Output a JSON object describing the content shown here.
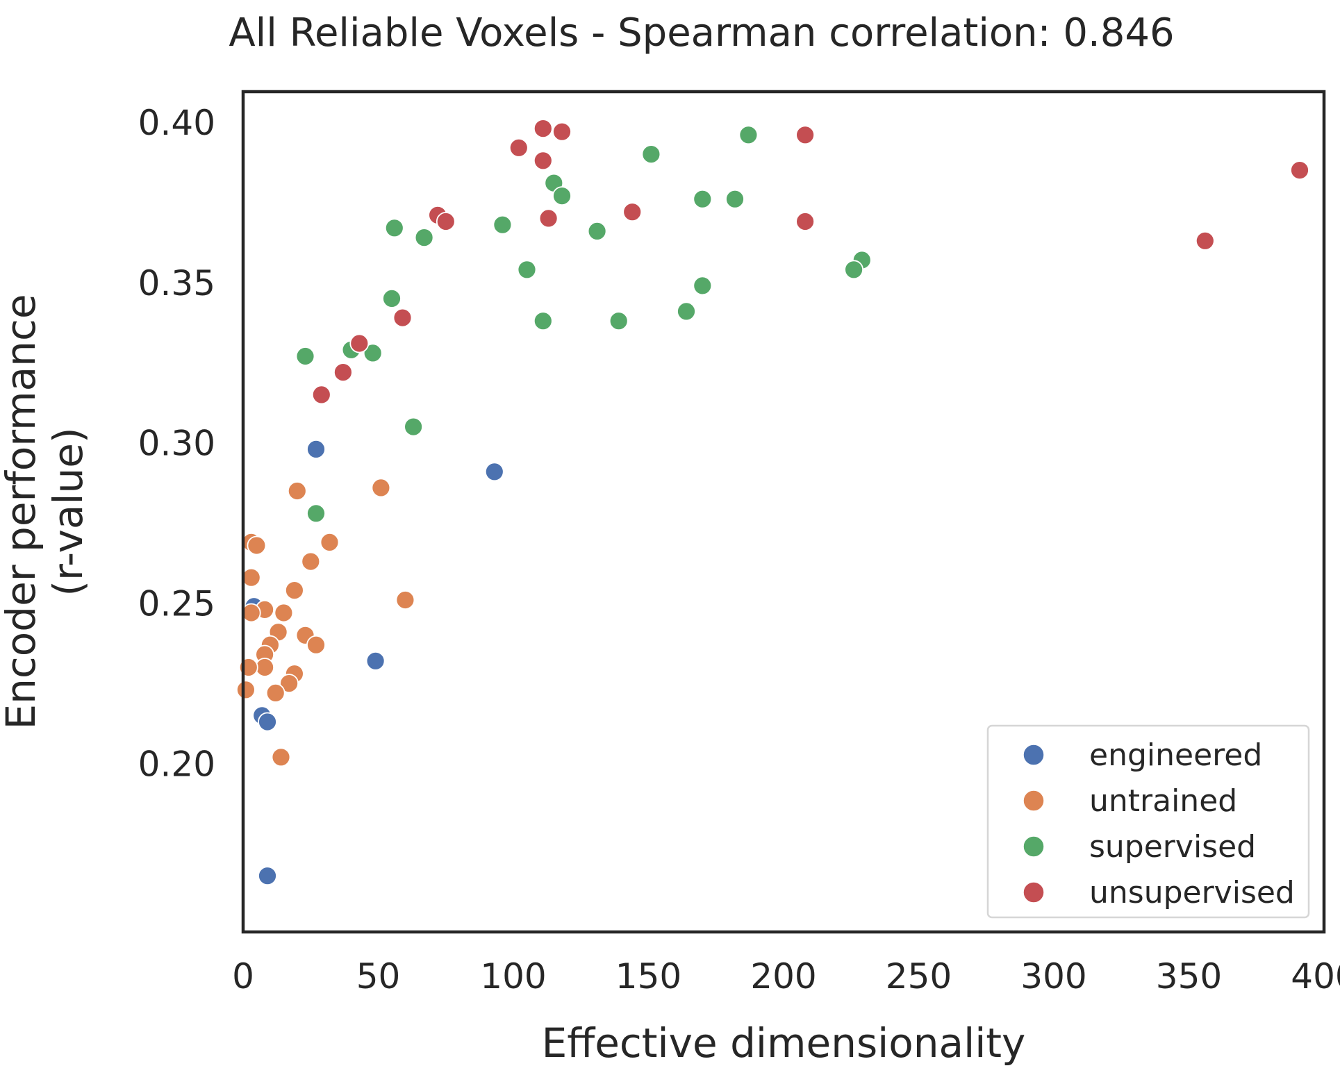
{
  "chart_data": {
    "type": "scatter",
    "title": "All Reliable Voxels - Spearman correlation: 0.846",
    "xlabel": "Effective dimensionality",
    "ylabel_lines": [
      "Encoder performance",
      "(r-value)"
    ],
    "xlim": [
      0,
      400
    ],
    "ylim": [
      0.1475,
      0.4095
    ],
    "xticks": [
      0,
      50,
      100,
      150,
      200,
      250,
      300,
      350,
      400
    ],
    "xtick_labels": [
      "0",
      "50",
      "100",
      "150",
      "200",
      "250",
      "300",
      "350",
      "400"
    ],
    "yticks": [
      0.2,
      0.25,
      0.3,
      0.35,
      0.4
    ],
    "ytick_labels": [
      "0.20",
      "0.25",
      "0.30",
      "0.35",
      "0.40"
    ],
    "grid": false,
    "legend_position": "lower-right",
    "series": [
      {
        "name": "engineered",
        "color": "#4c72b0",
        "points": [
          [
            27,
            0.298
          ],
          [
            93,
            0.291
          ],
          [
            4,
            0.249
          ],
          [
            49,
            0.232
          ],
          [
            7,
            0.215
          ],
          [
            9,
            0.213
          ],
          [
            9,
            0.165
          ]
        ]
      },
      {
        "name": "untrained",
        "color": "#dd8452",
        "points": [
          [
            20,
            0.285
          ],
          [
            51,
            0.286
          ],
          [
            3,
            0.269
          ],
          [
            5,
            0.268
          ],
          [
            32,
            0.269
          ],
          [
            25,
            0.263
          ],
          [
            3,
            0.258
          ],
          [
            19,
            0.254
          ],
          [
            60,
            0.251
          ],
          [
            8,
            0.248
          ],
          [
            15,
            0.247
          ],
          [
            3,
            0.247
          ],
          [
            13,
            0.241
          ],
          [
            23,
            0.24
          ],
          [
            10,
            0.237
          ],
          [
            27,
            0.237
          ],
          [
            8,
            0.234
          ],
          [
            8,
            0.23
          ],
          [
            2,
            0.23
          ],
          [
            19,
            0.228
          ],
          [
            17,
            0.225
          ],
          [
            1,
            0.223
          ],
          [
            12,
            0.222
          ],
          [
            14,
            0.202
          ]
        ]
      },
      {
        "name": "supervised",
        "color": "#55a868",
        "points": [
          [
            187,
            0.396
          ],
          [
            151,
            0.39
          ],
          [
            115,
            0.381
          ],
          [
            118,
            0.377
          ],
          [
            170,
            0.376
          ],
          [
            182,
            0.376
          ],
          [
            96,
            0.368
          ],
          [
            56,
            0.367
          ],
          [
            67,
            0.364
          ],
          [
            131,
            0.366
          ],
          [
            229,
            0.357
          ],
          [
            226,
            0.354
          ],
          [
            105,
            0.354
          ],
          [
            170,
            0.349
          ],
          [
            55,
            0.345
          ],
          [
            164,
            0.341
          ],
          [
            111,
            0.338
          ],
          [
            139,
            0.338
          ],
          [
            23,
            0.327
          ],
          [
            40,
            0.329
          ],
          [
            48,
            0.328
          ],
          [
            29,
            0.315
          ],
          [
            63,
            0.305
          ],
          [
            27,
            0.278
          ]
        ]
      },
      {
        "name": "unsupervised",
        "color": "#c44e52",
        "points": [
          [
            111,
            0.398
          ],
          [
            118,
            0.397
          ],
          [
            208,
            0.396
          ],
          [
            102,
            0.392
          ],
          [
            111,
            0.388
          ],
          [
            391,
            0.385
          ],
          [
            72,
            0.371
          ],
          [
            144,
            0.372
          ],
          [
            75,
            0.369
          ],
          [
            113,
            0.37
          ],
          [
            208,
            0.369
          ],
          [
            356,
            0.363
          ],
          [
            59,
            0.339
          ],
          [
            43,
            0.331
          ],
          [
            37,
            0.322
          ],
          [
            29,
            0.315
          ]
        ]
      }
    ]
  }
}
